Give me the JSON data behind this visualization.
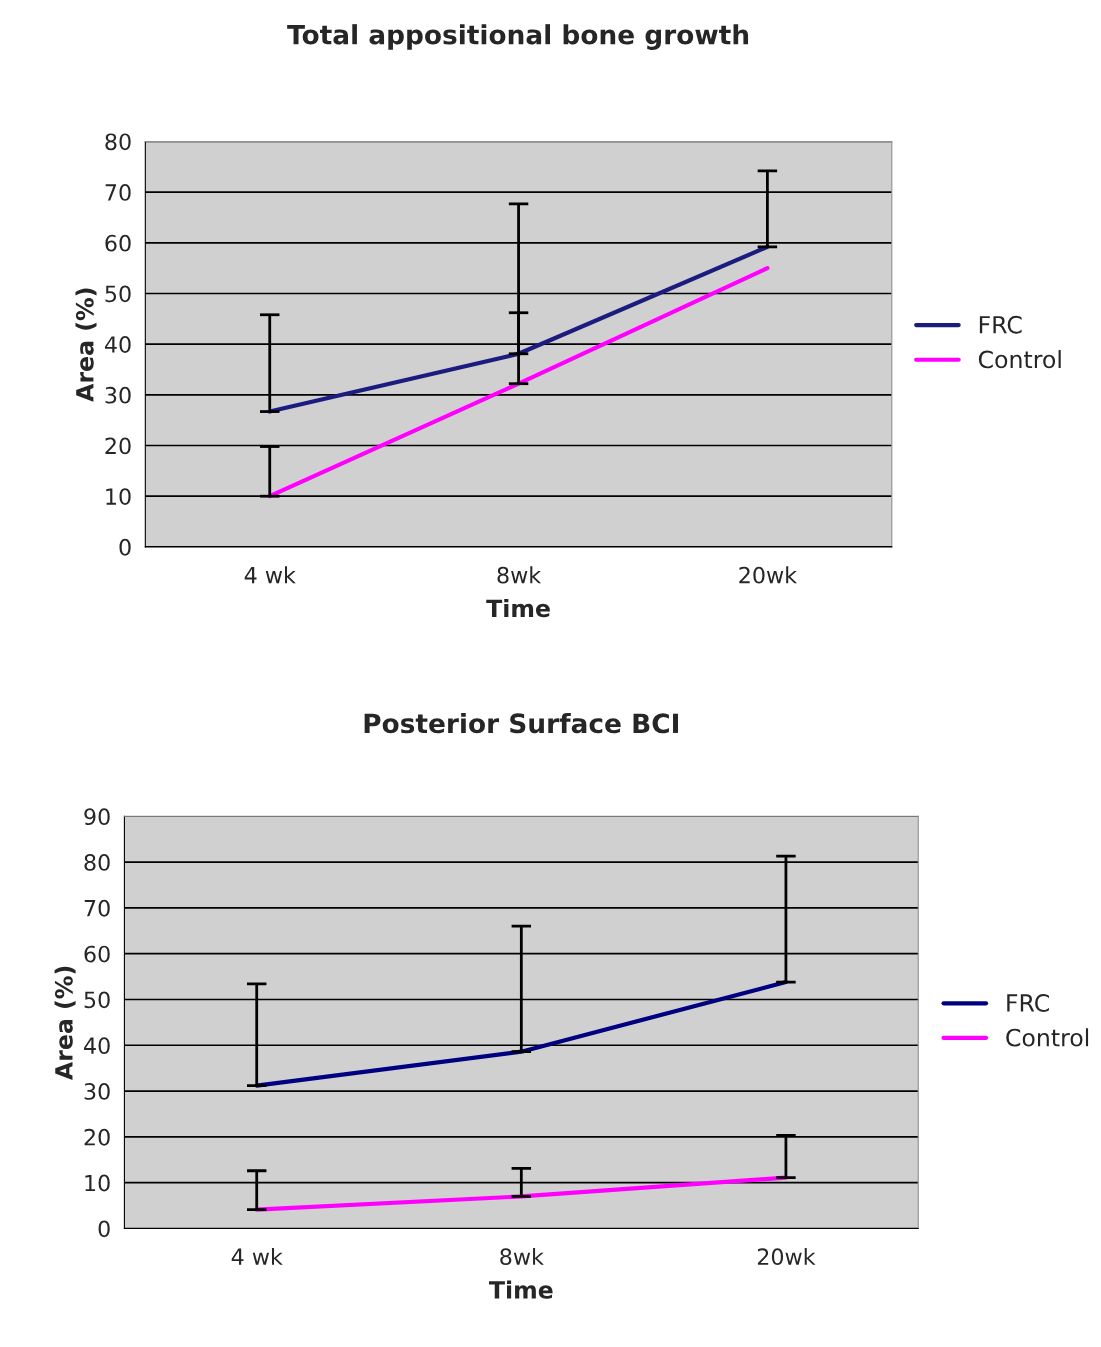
{
  "chart_data": [
    {
      "type": "line",
      "title": "Total appositional bone growth",
      "xlabel": "Time",
      "ylabel": "Area (%)",
      "categories": [
        "4 wk",
        "8wk",
        "20wk"
      ],
      "series": [
        {
          "name": "FRC",
          "color": "#1c1c80",
          "values": [
            26.7,
            38.1,
            59.2
          ],
          "errors": [
            [
              26.7,
              45.8
            ],
            [
              38.1,
              67.7
            ],
            [
              59.2,
              74.2
            ]
          ]
        },
        {
          "name": "Control",
          "color": "#ff00ff",
          "values": [
            10.0,
            32.2,
            55.0
          ],
          "errors": [
            [
              10.0,
              19.8
            ],
            [
              32.2,
              46.2
            ],
            null
          ]
        }
      ],
      "ylim": [
        0,
        80
      ],
      "yticks": [
        0,
        10,
        20,
        30,
        40,
        50,
        60,
        70,
        80
      ],
      "grid": "y",
      "legend": "right",
      "marker": "none",
      "line_style": "solid"
    },
    {
      "type": "line",
      "title": "Posterior Surface BCI",
      "xlabel": "Time",
      "ylabel": "Area (%)",
      "categories": [
        "4 wk",
        "8wk",
        "20wk"
      ],
      "series": [
        {
          "name": "FRC",
          "color": "#000080",
          "values": [
            31.2,
            38.6,
            53.8
          ],
          "errors": [
            [
              31.2,
              53.4
            ],
            [
              38.6,
              66.0
            ],
            [
              53.8,
              81.3
            ]
          ]
        },
        {
          "name": "Control",
          "color": "#ff00ff",
          "values": [
            4.1,
            7.0,
            11.1
          ],
          "errors": [
            [
              4.1,
              12.6
            ],
            [
              7.0,
              13.1
            ],
            [
              11.1,
              20.3
            ]
          ]
        }
      ],
      "ylim": [
        0,
        90
      ],
      "yticks": [
        0,
        10,
        20,
        30,
        40,
        50,
        60,
        70,
        80,
        90
      ],
      "grid": "y",
      "legend": "right",
      "marker": "none",
      "line_style": "solid"
    }
  ]
}
